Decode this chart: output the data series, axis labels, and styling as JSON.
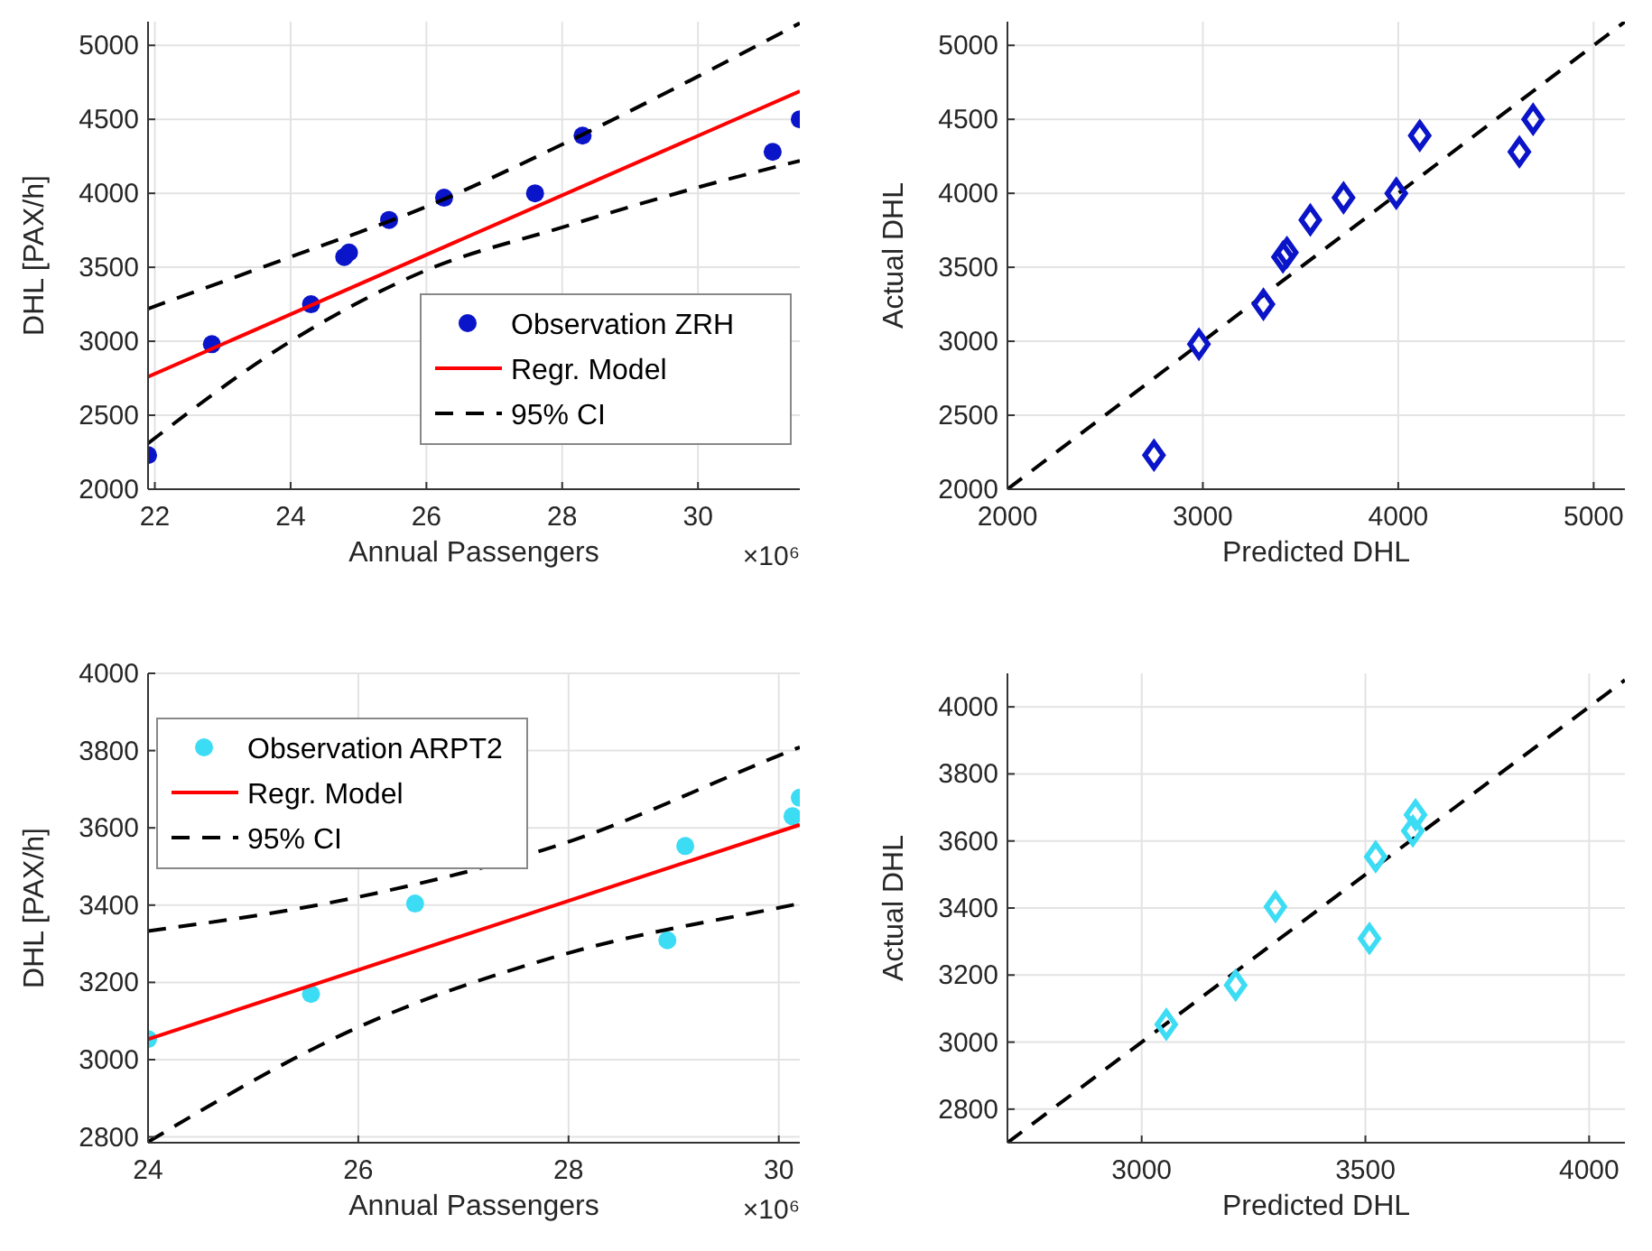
{
  "chart_data": [
    {
      "type": "scatter",
      "xlabel": "Annual Passengers",
      "ylabel": "DHL [PAX/h]",
      "xlim": [
        21.9,
        31.5
      ],
      "ylim": [
        2000,
        5160
      ],
      "xticks": [
        22,
        24,
        26,
        28,
        30
      ],
      "yticks": [
        2000,
        2500,
        3000,
        3500,
        4000,
        4500,
        5000
      ],
      "grid": true,
      "legend": "bottom right",
      "annotations": [
        "×10⁶"
      ],
      "series": [
        {
          "name": "Observation ZRH",
          "type": "scatter",
          "marker": "circle",
          "color": "#0a14c8",
          "x": [
            21.9,
            22.84,
            24.3,
            24.79,
            24.86,
            25.45,
            26.26,
            27.6,
            28.3,
            31.1,
            31.5
          ],
          "values": [
            2230,
            2980,
            3250,
            3570,
            3600,
            3820,
            3970,
            4000,
            4390,
            4280,
            4500
          ]
        },
        {
          "name": "Regr. Model",
          "type": "line",
          "marker": "none",
          "line_style": "solid",
          "color": "#ff0000",
          "x": [
            21.9,
            31.5
          ],
          "values": [
            2760,
            4690
          ]
        },
        {
          "name": "95% CI",
          "type": "line",
          "marker": "none",
          "line_style": "dashed",
          "color": "#000000",
          "x": [
            21.9,
            24,
            26,
            28,
            30,
            31.5
          ],
          "values": [
            3220,
            3570,
            3910,
            4330,
            4790,
            5150
          ]
        },
        {
          "type": "line",
          "marker": "none",
          "line_style": "dashed",
          "color": "#000000",
          "x": [
            21.9,
            24,
            26,
            28,
            30,
            31.5
          ],
          "values": [
            2310,
            3000,
            3480,
            3770,
            4040,
            4220
          ]
        }
      ]
    },
    {
      "type": "scatter",
      "xlabel": "Predicted DHL",
      "ylabel": "Actual DHL",
      "xlim": [
        2000,
        5160
      ],
      "ylim": [
        2000,
        5160
      ],
      "xticks": [
        2000,
        3000,
        4000,
        5000
      ],
      "yticks": [
        2000,
        2500,
        3000,
        3500,
        4000,
        4500,
        5000
      ],
      "grid": true,
      "series": [
        {
          "type": "line",
          "marker": "none",
          "line_style": "dashed",
          "color": "#000000",
          "x": [
            2000,
            5160
          ],
          "values": [
            2000,
            5160
          ]
        },
        {
          "type": "scatter",
          "marker": "diamond",
          "color": "#0a14c8",
          "x": [
            2750,
            2980,
            3310,
            3410,
            3430,
            3550,
            3720,
            3990,
            4110,
            4620,
            4690
          ],
          "values": [
            2230,
            2980,
            3250,
            3570,
            3600,
            3820,
            3970,
            4000,
            4390,
            4280,
            4500
          ]
        }
      ]
    },
    {
      "type": "scatter",
      "xlabel": "Annual Passengers",
      "ylabel": "DHL [PAX/h]",
      "xlim": [
        24,
        30.2
      ],
      "ylim": [
        2785,
        4000
      ],
      "xticks": [
        24,
        26,
        28,
        30
      ],
      "yticks": [
        2800,
        3000,
        3200,
        3400,
        3600,
        3800,
        4000
      ],
      "grid": true,
      "legend": "top left",
      "annotations": [
        "×10⁶"
      ],
      "series": [
        {
          "name": "Observation ARPT2",
          "type": "scatter",
          "marker": "circle",
          "color": "#3ddcf5",
          "x": [
            24,
            25.55,
            26.54,
            28.94,
            29.11,
            30.13,
            30.2
          ],
          "values": [
            3053,
            3170,
            3404,
            3309,
            3553,
            3630,
            3678
          ]
        },
        {
          "name": "Regr. Model",
          "type": "line",
          "marker": "none",
          "line_style": "solid",
          "color": "#ff0000",
          "x": [
            24,
            30.2
          ],
          "values": [
            3053,
            3608
          ]
        },
        {
          "name": "95% CI",
          "type": "line",
          "marker": "none",
          "line_style": "dashed",
          "color": "#000000",
          "x": [
            24,
            26,
            28,
            30,
            30.2
          ],
          "values": [
            3333,
            3421,
            3564,
            3787,
            3809
          ]
        },
        {
          "type": "line",
          "marker": "none",
          "line_style": "dashed",
          "color": "#000000",
          "x": [
            24,
            26,
            28,
            30,
            30.2
          ],
          "values": [
            2787,
            3084,
            3276,
            3393,
            3404
          ]
        }
      ]
    },
    {
      "type": "scatter",
      "xlabel": "Predicted DHL",
      "ylabel": "Actual DHL",
      "xlim": [
        2700,
        4080
      ],
      "ylim": [
        2700,
        4100
      ],
      "xticks": [
        3000,
        3500,
        4000
      ],
      "yticks": [
        2800,
        3000,
        3200,
        3400,
        3600,
        3800,
        4000
      ],
      "grid": true,
      "series": [
        {
          "type": "line",
          "marker": "none",
          "line_style": "dashed",
          "color": "#000000",
          "x": [
            2700,
            4080
          ],
          "values": [
            2700,
            4080
          ]
        },
        {
          "type": "scatter",
          "marker": "diamond",
          "color": "#3ddcf5",
          "x": [
            3055,
            3210,
            3299,
            3509,
            3523,
            3606,
            3612
          ],
          "values": [
            3053,
            3170,
            3404,
            3309,
            3553,
            3630,
            3678
          ]
        }
      ]
    }
  ]
}
